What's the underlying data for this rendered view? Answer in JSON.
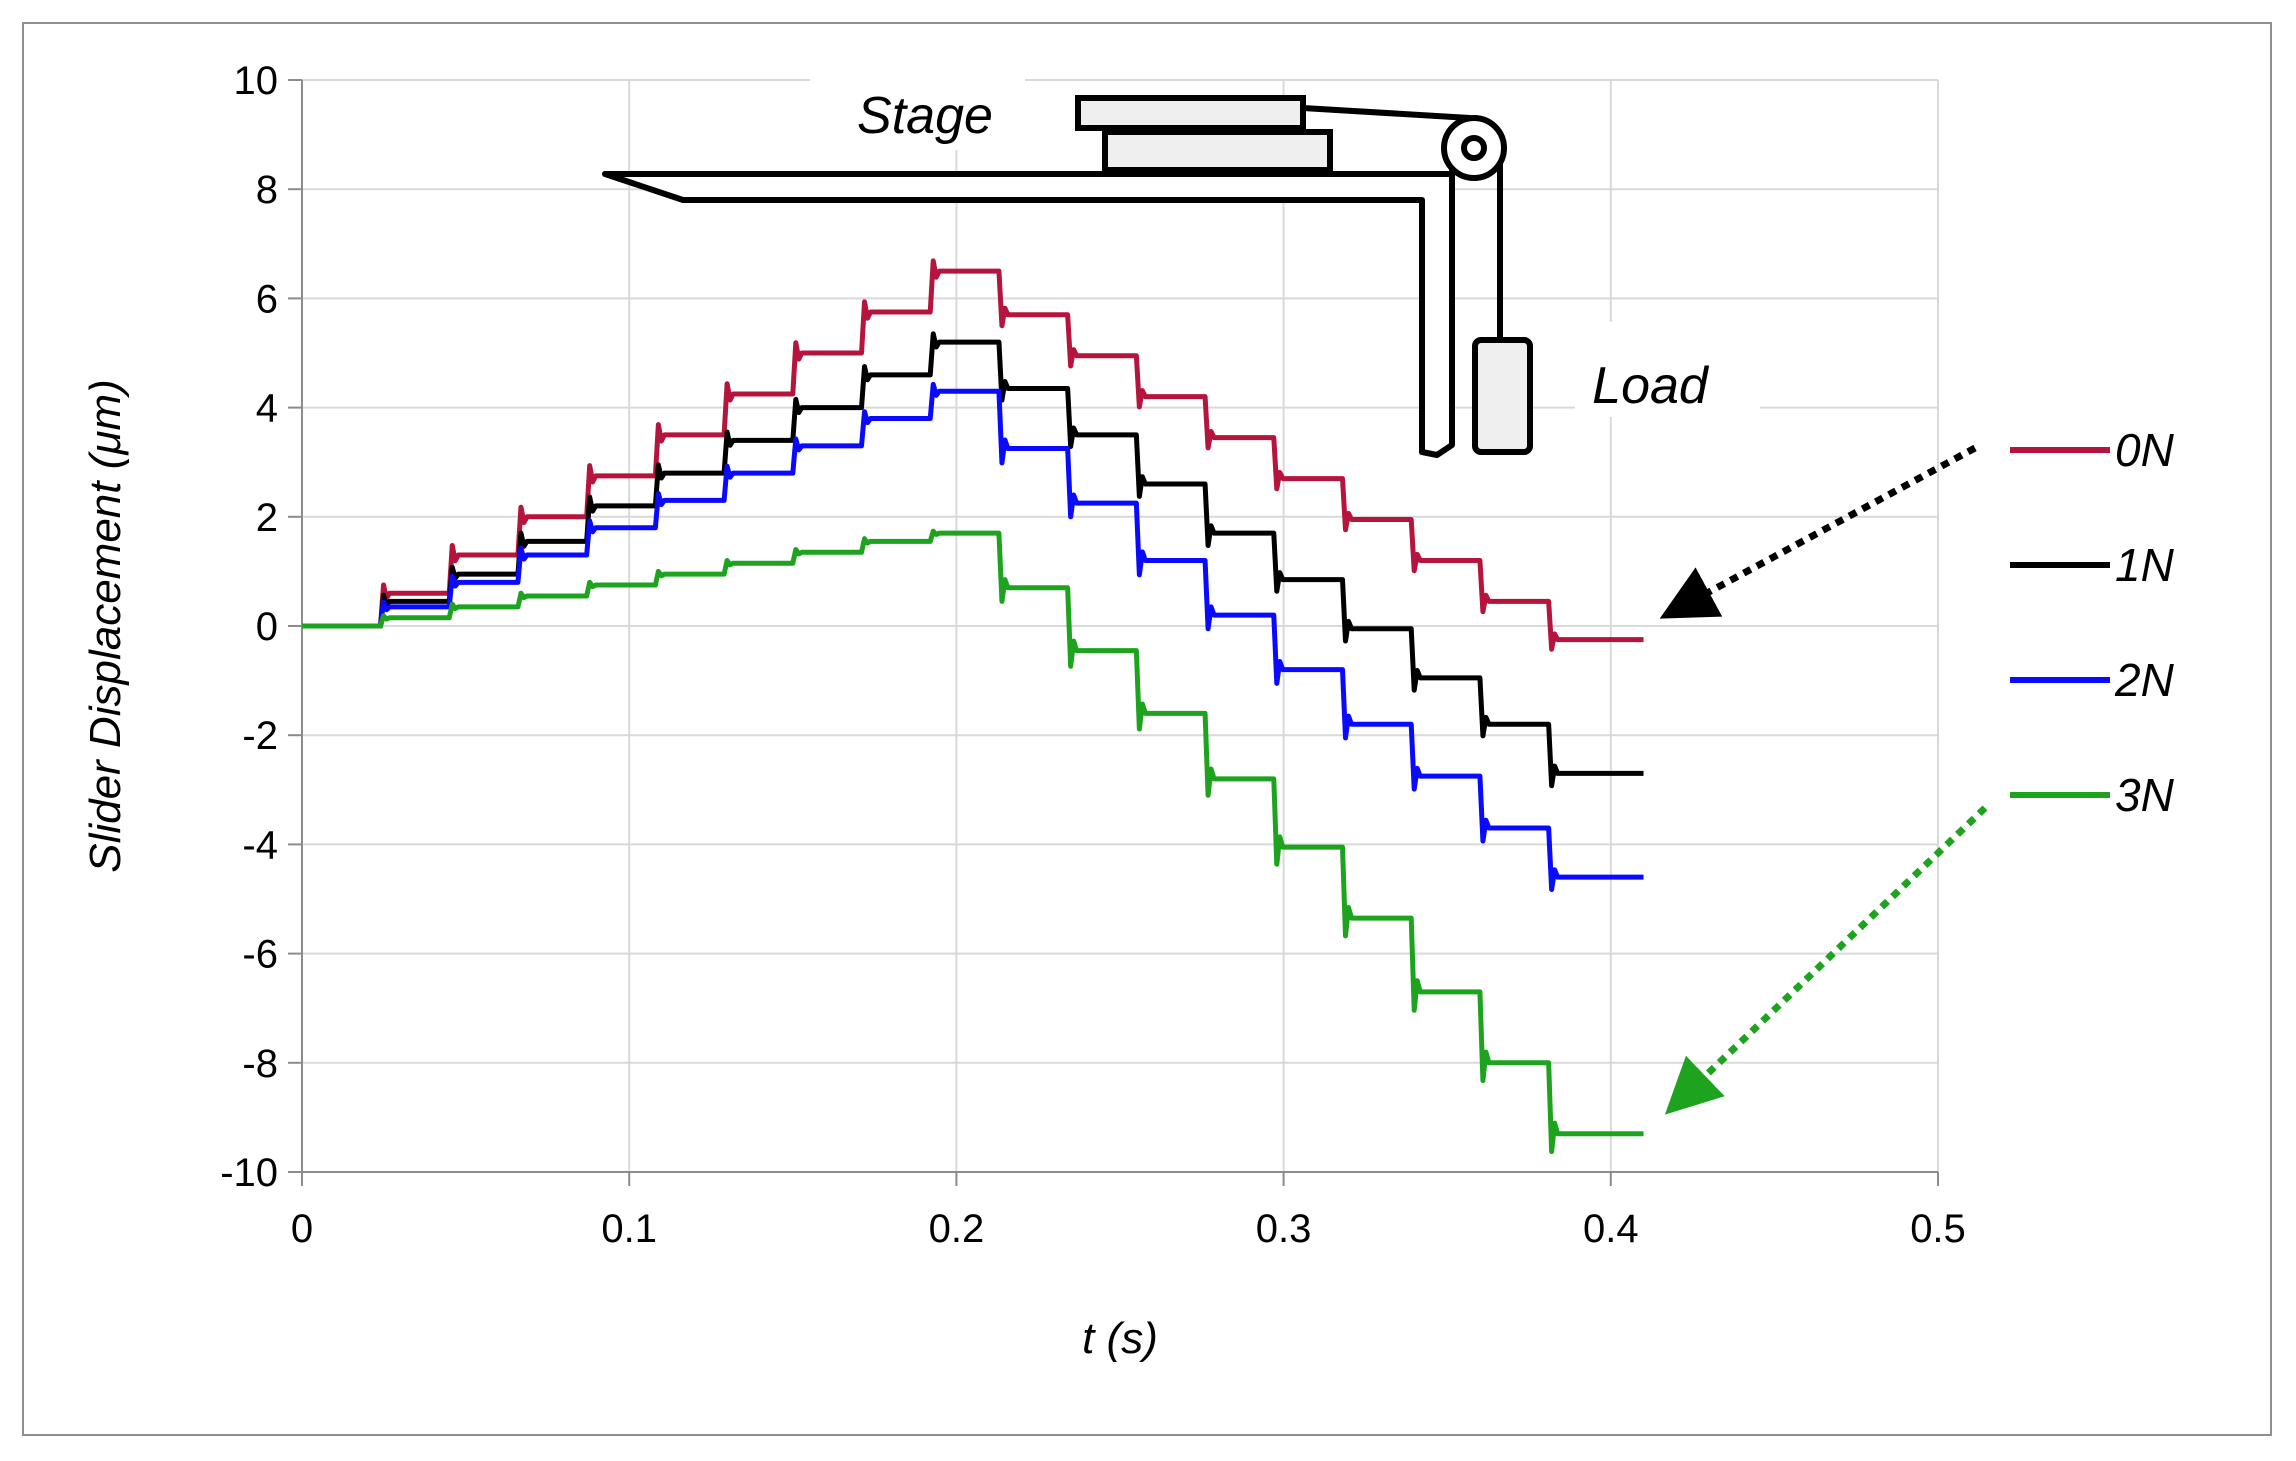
{
  "chart_data": {
    "type": "line",
    "title": "",
    "xlabel": "t (s)",
    "ylabel": "Slider Displacement (μm)",
    "xlim": [
      0,
      0.5
    ],
    "ylim": [
      -10,
      10
    ],
    "x_ticks": [
      "0",
      "0.1",
      "0.2",
      "0.3",
      "0.4",
      "0.5"
    ],
    "y_ticks": [
      "10",
      "8",
      "6",
      "4",
      "2",
      "0",
      "-2",
      "-4",
      "-6",
      "-8",
      "-10"
    ],
    "grid": true,
    "legend_position": "right",
    "step_times": [
      0.024,
      0.045,
      0.066,
      0.087,
      0.108,
      0.129,
      0.15,
      0.171,
      0.192,
      0.213,
      0.234,
      0.255,
      0.276,
      0.297,
      0.318,
      0.339,
      0.36,
      0.381
    ],
    "end_time": 0.41,
    "series": [
      {
        "name": "0N",
        "color": "#b5143c",
        "levels": [
          0,
          0.6,
          1.3,
          2.0,
          2.75,
          3.5,
          4.25,
          5.0,
          5.75,
          6.5,
          5.7,
          4.95,
          4.2,
          3.45,
          2.7,
          1.95,
          1.2,
          0.45,
          -0.25
        ]
      },
      {
        "name": "1N",
        "color": "#000000",
        "levels": [
          0,
          0.45,
          0.95,
          1.55,
          2.2,
          2.8,
          3.4,
          4.0,
          4.6,
          5.2,
          4.35,
          3.5,
          2.6,
          1.7,
          0.85,
          -0.05,
          -0.95,
          -1.8,
          -2.7
        ]
      },
      {
        "name": "2N",
        "color": "#0a0aff",
        "levels": [
          0,
          0.35,
          0.8,
          1.3,
          1.8,
          2.3,
          2.8,
          3.3,
          3.8,
          4.3,
          3.25,
          2.25,
          1.2,
          0.2,
          -0.8,
          -1.8,
          -2.75,
          -3.7,
          -4.6
        ]
      },
      {
        "name": "3N",
        "color": "#1ea31e",
        "levels": [
          0,
          0.15,
          0.35,
          0.55,
          0.75,
          0.95,
          1.15,
          1.35,
          1.55,
          1.7,
          0.7,
          -0.45,
          -1.6,
          -2.8,
          -4.05,
          -5.35,
          -6.7,
          -8.0,
          -9.3
        ]
      }
    ],
    "annotations": {
      "stage": "Stage",
      "load": "Load"
    }
  }
}
